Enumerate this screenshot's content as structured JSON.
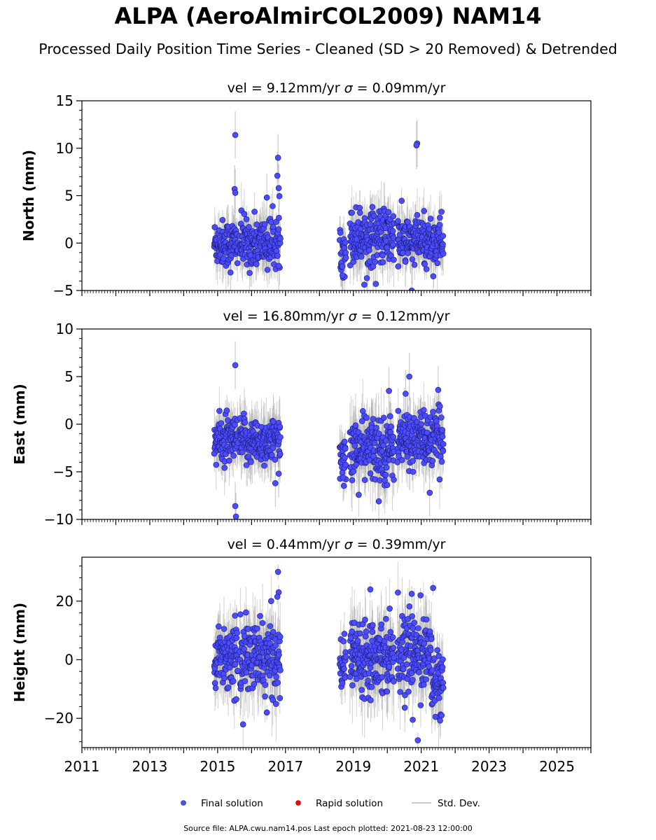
{
  "title": "ALPA (AeroAlmirCOL2009) NAM14",
  "subtitle": "Processed Daily Position Time Series - Cleaned (SD > 20 Removed) & Detrended",
  "footer": "Source file: ALPA.cwu.nam14.pos  Last epoch plotted: 2021-08-23 12:00:00",
  "legend": {
    "position": "bottom-center",
    "items": [
      {
        "label": "Final solution",
        "marker": "circle",
        "color": "#4b4bff"
      },
      {
        "label": "Rapid solution",
        "marker": "circle",
        "color": "#ff0000"
      },
      {
        "label": "Std. Dev.",
        "marker": "line",
        "color": "#c8c8c8"
      }
    ]
  },
  "colors": {
    "final": "#4b4bff",
    "rapid": "#ff0000",
    "stddev": "#9a9a9a",
    "axis": "#000000"
  },
  "chart_data": [
    {
      "type": "scatter",
      "component": "north",
      "ylabel": "North (mm)",
      "velocity": "9.12mm/yr",
      "sigma": "0.09mm/yr",
      "xlim": [
        2011,
        2026
      ],
      "ylim": [
        -5,
        15
      ],
      "yticks": [
        -5,
        0,
        5,
        10,
        15
      ],
      "xticks": [
        2011,
        2013,
        2015,
        2017,
        2019,
        2021,
        2023,
        2025
      ],
      "grid": false,
      "segments": [
        {
          "start": 2014.9,
          "end": 2015.6,
          "mean": 0.0,
          "spread": 1.2,
          "sd": 1.8
        },
        {
          "start": 2015.65,
          "end": 2016.85,
          "mean": 0.0,
          "spread": 1.3,
          "sd": 2.0
        },
        {
          "start": 2018.6,
          "end": 2018.78,
          "mean": -0.5,
          "spread": 1.3,
          "sd": 1.8
        },
        {
          "start": 2018.9,
          "end": 2020.2,
          "mean": 0.7,
          "spread": 1.5,
          "sd": 2.2
        },
        {
          "start": 2020.3,
          "end": 2021.65,
          "mean": 0.2,
          "spread": 1.3,
          "sd": 2.0
        }
      ],
      "points": [
        [
          2015.52,
          11.4
        ],
        [
          2015.5,
          5.7
        ],
        [
          2015.52,
          5.3
        ],
        [
          2016.78,
          9.0
        ],
        [
          2016.76,
          7.1
        ],
        [
          2016.8,
          5.8
        ],
        [
          2016.45,
          4.8
        ],
        [
          2016.8,
          -2.4
        ],
        [
          2015.38,
          -3.1
        ],
        [
          2020.88,
          10.5
        ],
        [
          2020.86,
          10.3
        ],
        [
          2020.72,
          -5.0
        ],
        [
          2018.68,
          -3.4
        ],
        [
          2019.4,
          -3.7
        ]
      ]
    },
    {
      "type": "scatter",
      "component": "east",
      "ylabel": "East (mm)",
      "velocity": "16.80mm/yr",
      "sigma": "0.12mm/yr",
      "xlim": [
        2011,
        2026
      ],
      "ylim": [
        -10,
        10
      ],
      "yticks": [
        -10,
        -5,
        0,
        5,
        10
      ],
      "xticks": [
        2011,
        2013,
        2015,
        2017,
        2019,
        2021,
        2023,
        2025
      ],
      "grid": false,
      "segments": [
        {
          "start": 2014.9,
          "end": 2015.6,
          "mean": -1.8,
          "spread": 1.2,
          "sd": 2.0
        },
        {
          "start": 2015.65,
          "end": 2016.85,
          "mean": -1.8,
          "spread": 1.2,
          "sd": 2.2
        },
        {
          "start": 2018.6,
          "end": 2018.78,
          "mean": -3.5,
          "spread": 1.2,
          "sd": 1.8
        },
        {
          "start": 2018.9,
          "end": 2020.2,
          "mean": -2.6,
          "spread": 1.7,
          "sd": 2.5
        },
        {
          "start": 2020.3,
          "end": 2021.65,
          "mean": -1.6,
          "spread": 1.4,
          "sd": 2.2
        }
      ],
      "points": [
        [
          2015.52,
          6.2
        ],
        [
          2015.52,
          -8.6
        ],
        [
          2015.54,
          -9.7
        ],
        [
          2016.8,
          -5.2
        ],
        [
          2016.7,
          -6.2
        ],
        [
          2018.7,
          -5.6
        ],
        [
          2020.65,
          5.0
        ],
        [
          2020.54,
          3.2
        ],
        [
          2021.5,
          3.6
        ],
        [
          2021.25,
          -7.2
        ],
        [
          2019.75,
          -8.1
        ],
        [
          2020.05,
          3.5
        ]
      ]
    },
    {
      "type": "scatter",
      "component": "height",
      "ylabel": "Height (mm)",
      "velocity": "0.44mm/yr",
      "sigma": "0.39mm/yr",
      "xlim": [
        2011,
        2026
      ],
      "ylim": [
        -30,
        35
      ],
      "yticks": [
        -20,
        0,
        20
      ],
      "xticks": [
        2011,
        2013,
        2015,
        2017,
        2019,
        2021,
        2023,
        2025
      ],
      "xticklabels": [
        "2011",
        "2013",
        "2015",
        "2017",
        "2019",
        "2021",
        "2023",
        "2025"
      ],
      "grid": false,
      "segments": [
        {
          "start": 2014.9,
          "end": 2015.6,
          "mean": 1.5,
          "spread": 5.5,
          "sd": 8.0
        },
        {
          "start": 2015.65,
          "end": 2016.85,
          "mean": 0.5,
          "spread": 6.0,
          "sd": 9.0
        },
        {
          "start": 2018.6,
          "end": 2018.78,
          "mean": -2.0,
          "spread": 4.0,
          "sd": 6.0
        },
        {
          "start": 2018.9,
          "end": 2020.2,
          "mean": 2.0,
          "spread": 6.0,
          "sd": 9.0
        },
        {
          "start": 2020.3,
          "end": 2021.3,
          "mean": 2.5,
          "spread": 6.0,
          "sd": 9.0
        },
        {
          "start": 2021.3,
          "end": 2021.65,
          "mean": -8.0,
          "spread": 5.0,
          "sd": 8.0
        }
      ],
      "points": [
        [
          2016.78,
          30.0
        ],
        [
          2016.8,
          23.0
        ],
        [
          2016.76,
          21.5
        ],
        [
          2019.5,
          24.0
        ],
        [
          2021.35,
          24.5
        ],
        [
          2020.72,
          22.5
        ],
        [
          2020.98,
          22.0
        ],
        [
          2020.9,
          -27.5
        ],
        [
          2020.75,
          -20.5
        ],
        [
          2016.45,
          -18.0
        ],
        [
          2015.55,
          -13.5
        ],
        [
          2021.42,
          -19.5
        ],
        [
          2021.6,
          -19.0
        ]
      ]
    }
  ]
}
